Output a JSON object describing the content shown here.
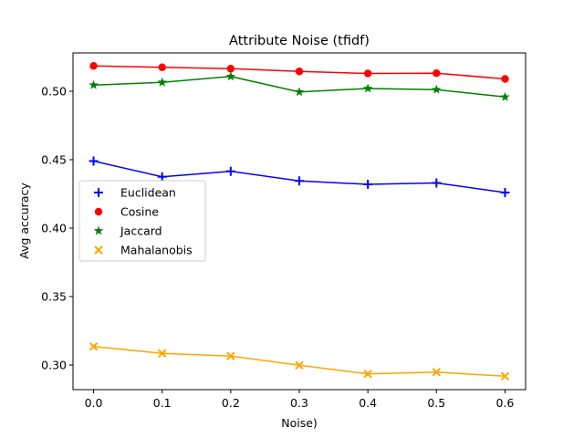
{
  "chart_data": {
    "type": "line",
    "title": "Attribute Noise (tfidf)",
    "xlabel": "Noise)",
    "ylabel": "Avg accuracy",
    "x": [
      0.0,
      0.1,
      0.2,
      0.3,
      0.4,
      0.5,
      0.6
    ],
    "xticks": [
      "0.0",
      "0.1",
      "0.2",
      "0.3",
      "0.4",
      "0.5",
      "0.6"
    ],
    "yticks": [
      "0.30",
      "0.35",
      "0.40",
      "0.45",
      "0.50"
    ],
    "xlim": [
      -0.03,
      0.63
    ],
    "ylim": [
      0.282,
      0.528
    ],
    "grid": false,
    "legend_position": "center-left",
    "series": [
      {
        "name": "Euclidean",
        "color": "#0000ff",
        "marker": "plus",
        "values": [
          0.449,
          0.4375,
          0.4415,
          0.4345,
          0.432,
          0.433,
          0.426
        ]
      },
      {
        "name": "Cosine",
        "color": "#ff0000",
        "marker": "circle",
        "values": [
          0.5185,
          0.5175,
          0.5165,
          0.5145,
          0.513,
          0.5132,
          0.509
        ]
      },
      {
        "name": "Jaccard",
        "color": "#008000",
        "marker": "star",
        "values": [
          0.5045,
          0.5065,
          0.5108,
          0.4995,
          0.502,
          0.5012,
          0.4958
        ]
      },
      {
        "name": "Mahalanobis",
        "color": "#ffa500",
        "marker": "x",
        "values": [
          0.3135,
          0.3085,
          0.3065,
          0.2998,
          0.2935,
          0.2948,
          0.2918
        ]
      }
    ]
  }
}
